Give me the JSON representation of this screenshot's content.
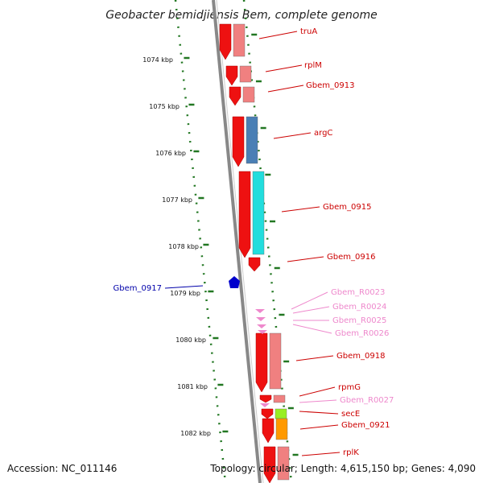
{
  "title": "Geobacter bemidjiensis Bem, complete genome",
  "footer": {
    "accession": "Accession: NC_011146",
    "topology": "Topology: circular; Length: 4,615,150 bp; Genes: 4,090"
  },
  "colors": {
    "label_red": "#cc0000",
    "label_pink": "#ee88cc",
    "label_blue": "#0000aa",
    "tick_green": "#227722",
    "backbone": "#888888"
  },
  "tick_labels": [
    "1074 kbp",
    "1075 kbp",
    "1076 kbp",
    "1077 kbp",
    "1078 kbp",
    "1079 kbp",
    "1080 kbp",
    "1081 kbp",
    "1082 kbp"
  ],
  "genes": [
    {
      "name": "truA",
      "type": "protein",
      "label_color": "red"
    },
    {
      "name": "rplM",
      "type": "protein",
      "label_color": "red"
    },
    {
      "name": "Gbem_0913",
      "type": "protein",
      "label_color": "red"
    },
    {
      "name": "argC",
      "type": "protein",
      "label_color": "red"
    },
    {
      "name": "Gbem_0915",
      "type": "protein",
      "label_color": "red"
    },
    {
      "name": "Gbem_0916",
      "type": "protein",
      "label_color": "red"
    },
    {
      "name": "Gbem_0917",
      "type": "protein",
      "label_color": "blue"
    },
    {
      "name": "Gbem_R0023",
      "type": "rna",
      "label_color": "pink"
    },
    {
      "name": "Gbem_R0024",
      "type": "rna",
      "label_color": "pink"
    },
    {
      "name": "Gbem_R0025",
      "type": "rna",
      "label_color": "pink"
    },
    {
      "name": "Gbem_R0026",
      "type": "rna",
      "label_color": "pink"
    },
    {
      "name": "Gbem_0918",
      "type": "protein",
      "label_color": "red"
    },
    {
      "name": "rpmG",
      "type": "protein",
      "label_color": "red"
    },
    {
      "name": "Gbem_R0027",
      "type": "rna",
      "label_color": "pink"
    },
    {
      "name": "secE",
      "type": "protein",
      "label_color": "red"
    },
    {
      "name": "Gbem_0921",
      "type": "protein",
      "label_color": "red"
    },
    {
      "name": "rplK",
      "type": "protein",
      "label_color": "red"
    }
  ]
}
